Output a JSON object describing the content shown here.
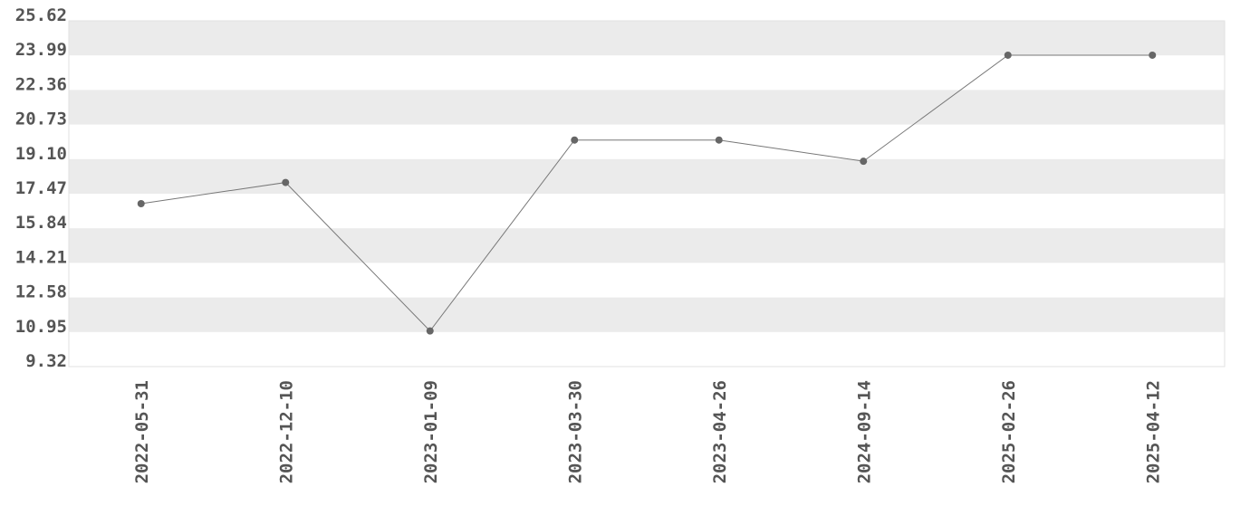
{
  "chart_data": {
    "type": "line",
    "title": "",
    "xlabel": "",
    "ylabel": "",
    "categories": [
      "2022-05-31",
      "2022-12-10",
      "2023-01-09",
      "2023-03-30",
      "2023-04-26",
      "2024-09-14",
      "2025-02-26",
      "2025-04-12"
    ],
    "values": [
      17,
      18,
      11,
      20,
      20,
      19,
      24,
      24
    ],
    "ylim": [
      9.32,
      25.62
    ],
    "yticks": [
      "9.32",
      "10.95",
      "12.58",
      "14.21",
      "15.84",
      "17.47",
      "19.10",
      "20.73",
      "22.36",
      "23.99",
      "25.62"
    ],
    "grid": "alternating horizontal bands",
    "legend": "none",
    "colors": {
      "line": "#777777",
      "marker": "#666666",
      "band": "#ebebeb",
      "text": "#555555"
    }
  }
}
